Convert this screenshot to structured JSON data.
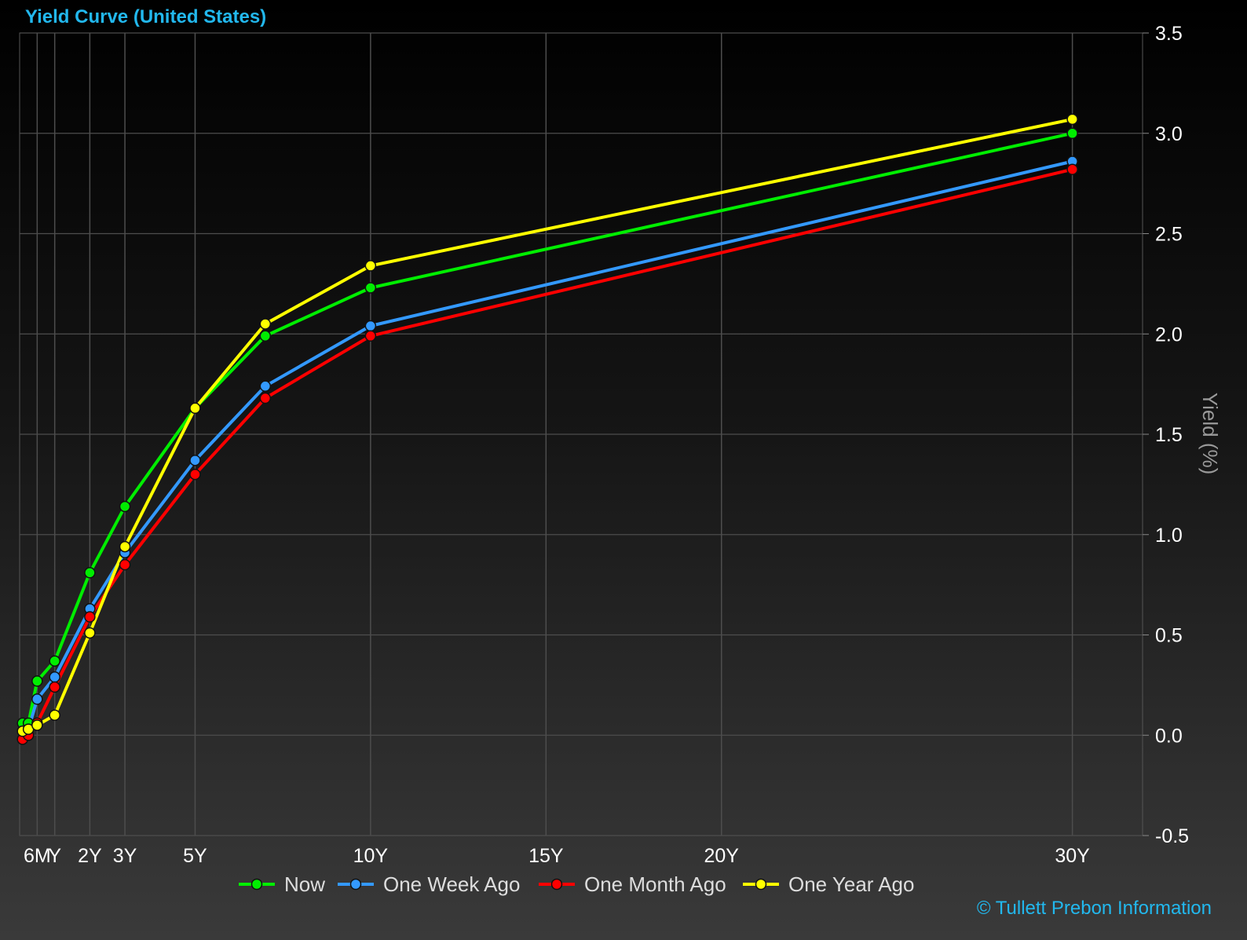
{
  "title": "Yield Curve (United States)",
  "credit": "© Tullett Prebon Information",
  "chart_data": {
    "type": "line",
    "title": "Yield Curve (United States)",
    "xlabel": "",
    "ylabel": "Yield (%)",
    "x_unit": "years to maturity",
    "xlim": [
      0,
      32
    ],
    "ylim": [
      -0.5,
      3.5
    ],
    "y_ticks": [
      -0.5,
      0.0,
      0.5,
      1.0,
      1.5,
      2.0,
      2.5,
      3.0,
      3.5
    ],
    "y_tick_labels": [
      "-0.5",
      "0.0",
      "0.5",
      "1.0",
      "1.5",
      "2.0",
      "2.5",
      "3.0",
      "3.5"
    ],
    "x_ticks": [
      {
        "value": 0.5,
        "label": "6M"
      },
      {
        "value": 1,
        "label": "Y"
      },
      {
        "value": 2,
        "label": "2Y"
      },
      {
        "value": 3,
        "label": "3Y"
      },
      {
        "value": 5,
        "label": "5Y"
      },
      {
        "value": 10,
        "label": "10Y"
      },
      {
        "value": 15,
        "label": "15Y"
      },
      {
        "value": 20,
        "label": "20Y"
      },
      {
        "value": 30,
        "label": "30Y"
      }
    ],
    "grid_x": [
      0.5,
      1,
      2,
      3,
      5,
      10,
      15,
      20,
      30
    ],
    "grid": true,
    "y_axis_side": "right",
    "legend_position": "bottom",
    "x": [
      0.0833,
      0.25,
      0.5,
      1,
      2,
      3,
      5,
      7,
      10,
      30
    ],
    "series": [
      {
        "name": "Now",
        "color": "#00ee00",
        "values": [
          0.06,
          0.06,
          0.27,
          0.37,
          0.81,
          1.14,
          1.63,
          1.99,
          2.23,
          3.0
        ]
      },
      {
        "name": "One Week Ago",
        "color": "#3399ff",
        "values": [
          0.02,
          0.03,
          0.18,
          0.29,
          0.63,
          0.91,
          1.37,
          1.74,
          2.04,
          2.86
        ]
      },
      {
        "name": "One Month Ago",
        "color": "#ff0000",
        "values": [
          -0.02,
          0.0,
          0.06,
          0.24,
          0.59,
          0.85,
          1.3,
          1.68,
          1.99,
          2.82
        ]
      },
      {
        "name": "One Year Ago",
        "color": "#ffff00",
        "values": [
          0.02,
          0.03,
          0.05,
          0.1,
          0.51,
          0.94,
          1.63,
          2.05,
          2.34,
          3.07
        ]
      }
    ]
  }
}
